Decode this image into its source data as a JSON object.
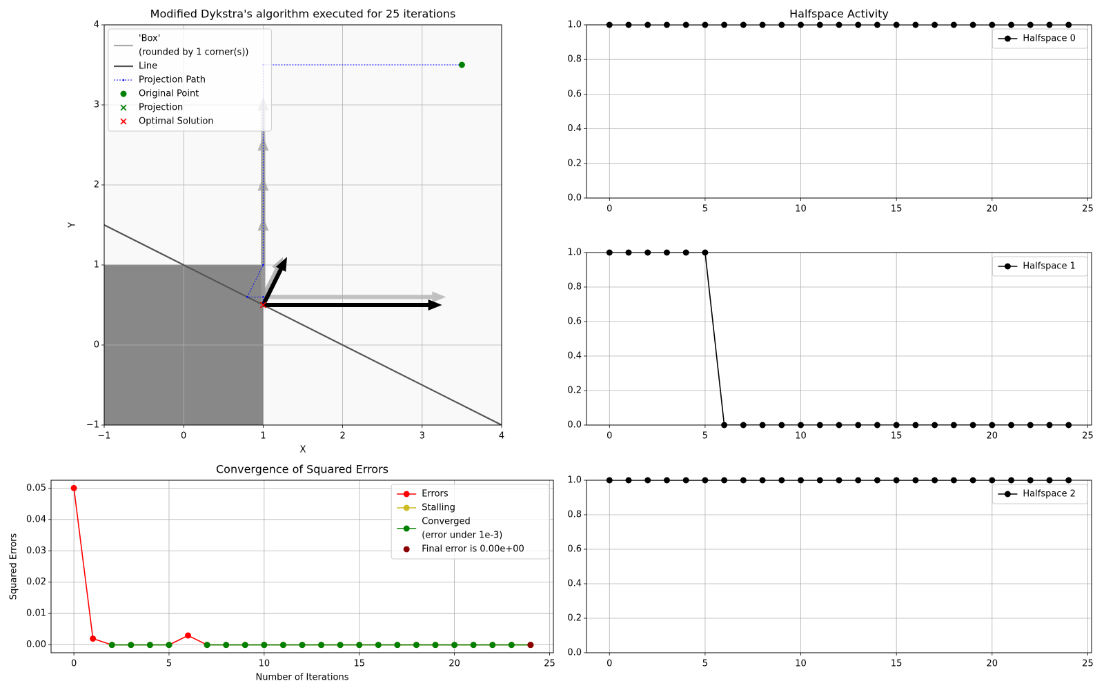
{
  "chart_data": [
    {
      "type": "projection",
      "title": "Modified Dykstra's algorithm executed for 25 iterations",
      "xlabel": "X",
      "ylabel": "Y",
      "xlim": [
        -1,
        4
      ],
      "ylim": [
        -1,
        4
      ],
      "xticks": [
        {
          "value": -1,
          "label": "−1"
        },
        0,
        1,
        2,
        3,
        4
      ],
      "yticks": [
        {
          "value": -1,
          "label": "−1"
        },
        0,
        1,
        2,
        3,
        4
      ],
      "grid": true,
      "legend": "upper left",
      "series": [
        {
          "name": [
            "'Box'",
            "(rounded by 1 corner(s))"
          ],
          "kind": "polygon",
          "color": "#aaaaaa",
          "fill": "#888888",
          "x": [
            -1,
            1,
            1,
            -1
          ],
          "y": [
            -1,
            -1,
            1,
            1
          ]
        },
        {
          "name": "Line",
          "kind": "line",
          "color": "#555555",
          "x": [
            -1,
            4
          ],
          "y": [
            1.5,
            -1
          ]
        },
        {
          "name": "Projection Path",
          "kind": "path",
          "color": "#0000ff",
          "x": [
            3.5,
            1,
            1,
            0.8,
            1,
            1
          ],
          "y": [
            3.5,
            3.5,
            1,
            0.6,
            0.6,
            0.5
          ]
        },
        {
          "name": "Original Point",
          "kind": "points",
          "marker": "o",
          "color": "#008000",
          "x": [
            3.5
          ],
          "y": [
            3.5
          ]
        },
        {
          "name": "Projection",
          "kind": "points",
          "marker": "x",
          "color": "#008000",
          "x": [
            1
          ],
          "y": [
            0.5
          ]
        },
        {
          "name": "Optimal Solution",
          "kind": "points",
          "marker": "x",
          "color": "#ff0000",
          "x": [
            1
          ],
          "y": [
            0.5
          ]
        }
      ],
      "arrows": {
        "x": [
          1,
          1,
          1,
          1,
          1,
          1,
          1,
          1
        ],
        "y": [
          0.5,
          0.5,
          0.5,
          0.5,
          0.6,
          0.6,
          0.5,
          0.5
        ],
        "u": [
          0,
          0,
          0,
          0,
          2.3,
          0.25,
          2.25,
          0.3
        ],
        "v": [
          2.6,
          2.1,
          1.6,
          1.1,
          0,
          0.5,
          0,
          0.6
        ],
        "colors": [
          "#999999",
          "#999999",
          "#999999",
          "#999999",
          "#aaaaaa",
          "#999999",
          "#000000",
          "#000000"
        ]
      }
    },
    {
      "type": "line",
      "title": "Halfspace Activity",
      "x": [
        0,
        1,
        2,
        3,
        4,
        5,
        6,
        7,
        8,
        9,
        10,
        11,
        12,
        13,
        14,
        15,
        16,
        17,
        18,
        19,
        20,
        21,
        22,
        23,
        24
      ],
      "xlim": [
        -1.2,
        25.2
      ],
      "xticks": [
        0,
        5,
        10,
        15,
        20,
        25
      ],
      "ylim": [
        0,
        1
      ],
      "yticks": [
        {
          "value": 0,
          "label": "0.0"
        },
        0.2,
        0.4,
        0.6,
        0.8,
        {
          "value": 1,
          "label": "1.0"
        }
      ],
      "grid": true,
      "legend": "upper right",
      "series": [
        {
          "name": "Halfspace 0",
          "color": "#000000",
          "values": [
            1,
            1,
            1,
            1,
            1,
            1,
            1,
            1,
            1,
            1,
            1,
            1,
            1,
            1,
            1,
            1,
            1,
            1,
            1,
            1,
            1,
            1,
            1,
            1,
            1
          ]
        }
      ]
    },
    {
      "type": "line",
      "x": [
        0,
        1,
        2,
        3,
        4,
        5,
        6,
        7,
        8,
        9,
        10,
        11,
        12,
        13,
        14,
        15,
        16,
        17,
        18,
        19,
        20,
        21,
        22,
        23,
        24
      ],
      "xlim": [
        -1.2,
        25.2
      ],
      "xticks": [
        0,
        5,
        10,
        15,
        20,
        25
      ],
      "ylim": [
        0,
        1
      ],
      "yticks": [
        {
          "value": 0,
          "label": "0.0"
        },
        0.2,
        0.4,
        0.6,
        0.8,
        {
          "value": 1,
          "label": "1.0"
        }
      ],
      "grid": true,
      "legend": "upper right",
      "series": [
        {
          "name": "Halfspace 1",
          "color": "#000000",
          "values": [
            1,
            1,
            1,
            1,
            1,
            1,
            0,
            0,
            0,
            0,
            0,
            0,
            0,
            0,
            0,
            0,
            0,
            0,
            0,
            0,
            0,
            0,
            0,
            0,
            0
          ]
        }
      ]
    },
    {
      "type": "line",
      "x": [
        0,
        1,
        2,
        3,
        4,
        5,
        6,
        7,
        8,
        9,
        10,
        11,
        12,
        13,
        14,
        15,
        16,
        17,
        18,
        19,
        20,
        21,
        22,
        23,
        24
      ],
      "xlim": [
        -1.2,
        25.2
      ],
      "xticks": [
        0,
        5,
        10,
        15,
        20,
        25
      ],
      "ylim": [
        0,
        1
      ],
      "yticks": [
        {
          "value": 0,
          "label": "0.0"
        },
        0.2,
        0.4,
        0.6,
        0.8,
        {
          "value": 1,
          "label": "1.0"
        }
      ],
      "grid": true,
      "legend": "upper right",
      "series": [
        {
          "name": "Halfspace 2",
          "color": "#000000",
          "values": [
            1,
            1,
            1,
            1,
            1,
            1,
            1,
            1,
            1,
            1,
            1,
            1,
            1,
            1,
            1,
            1,
            1,
            1,
            1,
            1,
            1,
            1,
            1,
            1,
            1
          ]
        }
      ]
    },
    {
      "type": "line",
      "title": "Convergence of Squared Errors",
      "xlabel": "Number of Iterations",
      "ylabel": "Squared Errors",
      "x": [
        0,
        1,
        2,
        3,
        4,
        5,
        6,
        7,
        8,
        9,
        10,
        11,
        12,
        13,
        14,
        15,
        16,
        17,
        18,
        19,
        20,
        21,
        22,
        23,
        24
      ],
      "xlim": [
        -1.2,
        25.2
      ],
      "xticks": [
        0,
        5,
        10,
        15,
        20,
        25
      ],
      "ylim": [
        -0.0025,
        0.0525
      ],
      "yticks": [
        {
          "value": 0,
          "label": "0.00"
        },
        0.01,
        0.02,
        0.03,
        0.04,
        0.05
      ],
      "grid": true,
      "legend": "upper right",
      "series": [
        {
          "name": "Errors",
          "color": "#ff0000",
          "values": [
            0.05,
            0.002,
            0,
            0,
            0,
            0,
            0.003,
            0,
            0,
            0,
            0,
            0,
            0,
            0,
            0,
            0,
            0,
            0,
            0,
            0,
            0,
            0,
            0,
            0,
            0
          ]
        },
        {
          "name": "Stalling",
          "color": "#ccbb22",
          "values": [
            null,
            null,
            0,
            0,
            0,
            0,
            null,
            0,
            0,
            0,
            0,
            0,
            0,
            0,
            0,
            0,
            0,
            0,
            0,
            0,
            0,
            0,
            0,
            0,
            0
          ]
        },
        {
          "name": [
            "Converged",
            "(error under 1e-3)"
          ],
          "color": "#008000",
          "values": [
            null,
            null,
            0,
            0,
            0,
            0,
            null,
            0,
            0,
            0,
            0,
            0,
            0,
            0,
            0,
            0,
            0,
            0,
            0,
            0,
            0,
            0,
            0,
            0,
            0
          ]
        },
        {
          "name": "Final error is 0.00e+00",
          "color": "#8b0000",
          "line": false,
          "values": [
            null,
            null,
            null,
            null,
            null,
            null,
            null,
            null,
            null,
            null,
            null,
            null,
            null,
            null,
            null,
            null,
            null,
            null,
            null,
            null,
            null,
            null,
            null,
            null,
            0
          ]
        }
      ]
    }
  ]
}
